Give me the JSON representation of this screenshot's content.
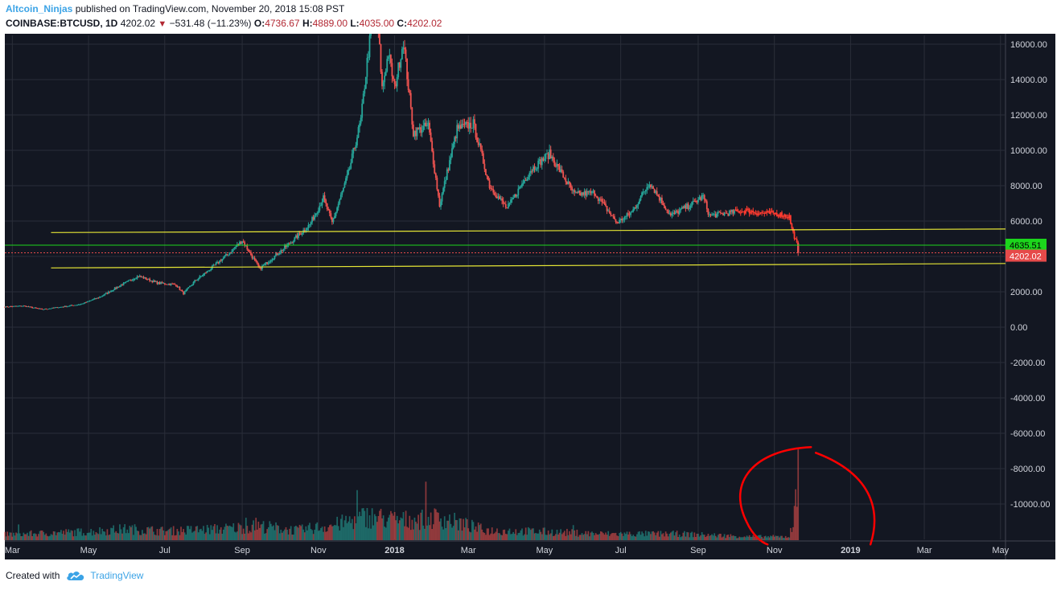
{
  "header": {
    "author": "Altcoin_Ninjas",
    "published": " published on TradingView.com, November 20, 2018 15:08 PST",
    "symbol": "COINBASE:BTCUSD, 1D",
    "last": "4202.02",
    "change": "−531.48 (−11.23%)",
    "o_label": "O:",
    "o": "4736.67",
    "h_label": "H:",
    "h": "4889.00",
    "l_label": "L:",
    "l": "4035.00",
    "c_label": "C:",
    "c": "4202.02"
  },
  "footer": {
    "created": "Created with",
    "brand": "TradingView",
    "logo_icon": "tradingview-cloud-icon"
  },
  "colors": {
    "background": "#131722",
    "grid": "#2a2e39",
    "up": "#26a69a",
    "down": "#ef5350",
    "price_line": "#ff3b30",
    "channel": "#e6e635",
    "support": "#1cd61c",
    "last_label": "#e64a4a",
    "annotation": "#ff0000",
    "axis_text": "#d1d4dc"
  },
  "chart_data": {
    "type": "candlestick",
    "symbol": "COINBASE:BTCUSD",
    "interval": "1D",
    "ylim": [
      -12000,
      16500
    ],
    "yticks": [
      16000,
      14000,
      12000,
      10000,
      8000,
      6000,
      4000,
      2000,
      0,
      -2000,
      -4000,
      -6000,
      -8000,
      -10000
    ],
    "ytick_labels": [
      "16000.00",
      "14000.00",
      "12000.00",
      "10000.00",
      "8000.00",
      "6000.00",
      "4000.00",
      "2000.00",
      "0.00",
      "-2000.00",
      "-4000.00",
      "-6000.00",
      "-8000.00",
      "-10000.00"
    ],
    "xticks": [
      "Mar",
      "May",
      "Jul",
      "Sep",
      "Nov",
      "2018",
      "Mar",
      "May",
      "Jul",
      "Sep",
      "Nov",
      "2019",
      "Mar",
      "May"
    ],
    "xtick_dates": [
      "2017-03-01",
      "2017-05-01",
      "2017-07-01",
      "2017-09-01",
      "2017-11-01",
      "2018-01-01",
      "2018-03-01",
      "2018-05-01",
      "2018-07-01",
      "2018-09-01",
      "2018-11-01",
      "2019-01-01",
      "2019-03-01",
      "2019-05-01"
    ],
    "x_range": [
      "2017-02-23",
      "2019-05-05"
    ],
    "price_path": [
      [
        "2017-02-23",
        1150
      ],
      [
        "2017-03-10",
        1200
      ],
      [
        "2017-03-25",
        1000
      ],
      [
        "2017-04-10",
        1150
      ],
      [
        "2017-04-25",
        1300
      ],
      [
        "2017-05-10",
        1700
      ],
      [
        "2017-05-25",
        2300
      ],
      [
        "2017-06-10",
        2900
      ],
      [
        "2017-06-25",
        2500
      ],
      [
        "2017-07-10",
        2400
      ],
      [
        "2017-07-16",
        1900
      ],
      [
        "2017-07-25",
        2600
      ],
      [
        "2017-08-05",
        3200
      ],
      [
        "2017-08-20",
        4100
      ],
      [
        "2017-09-01",
        4900
      ],
      [
        "2017-09-15",
        3300
      ],
      [
        "2017-09-25",
        3900
      ],
      [
        "2017-10-10",
        4800
      ],
      [
        "2017-10-25",
        5800
      ],
      [
        "2017-11-05",
        7300
      ],
      [
        "2017-11-12",
        5900
      ],
      [
        "2017-11-25",
        8700
      ],
      [
        "2017-12-05",
        11700
      ],
      [
        "2017-12-10",
        15000
      ],
      [
        "2017-12-17",
        19000
      ],
      [
        "2017-12-22",
        13500
      ],
      [
        "2017-12-27",
        15500
      ],
      [
        "2018-01-01",
        13500
      ],
      [
        "2018-01-08",
        16200
      ],
      [
        "2018-01-16",
        11000
      ],
      [
        "2018-01-28",
        11400
      ],
      [
        "2018-02-06",
        6900
      ],
      [
        "2018-02-20",
        11200
      ],
      [
        "2018-03-05",
        11500
      ],
      [
        "2018-03-18",
        8000
      ],
      [
        "2018-04-01",
        6700
      ],
      [
        "2018-04-20",
        8900
      ],
      [
        "2018-05-05",
        9800
      ],
      [
        "2018-05-25",
        7500
      ],
      [
        "2018-06-10",
        7600
      ],
      [
        "2018-06-28",
        5900
      ],
      [
        "2018-07-10",
        6500
      ],
      [
        "2018-07-24",
        8200
      ],
      [
        "2018-08-10",
        6300
      ],
      [
        "2018-08-28",
        7000
      ],
      [
        "2018-09-05",
        7400
      ],
      [
        "2018-09-10",
        6300
      ],
      [
        "2018-10-10",
        6600
      ],
      [
        "2018-10-20",
        6450
      ],
      [
        "2018-11-05",
        6400
      ],
      [
        "2018-11-13",
        6250
      ],
      [
        "2018-11-15",
        5550
      ],
      [
        "2018-11-19",
        4700
      ],
      [
        "2018-11-20",
        4202
      ]
    ],
    "last_candle": {
      "open": 4736.67,
      "high": 4889.0,
      "low": 4035.0,
      "close": 4202.02,
      "change": -531.48,
      "change_pct": -11.23
    },
    "price_labels": [
      {
        "value": 4635.51,
        "label": "4635.51",
        "color": "#1cd61c"
      },
      {
        "value": 4202.02,
        "label": "4202.02",
        "color": "#e64a4a"
      }
    ],
    "lines": [
      {
        "type": "trend",
        "color": "#e6e635",
        "from": [
          "2017-04-01",
          5350
        ],
        "to": [
          "2019-05-05",
          5550
        ]
      },
      {
        "type": "trend",
        "color": "#e6e635",
        "from": [
          "2017-04-01",
          3350
        ],
        "to": [
          "2019-05-05",
          3600
        ]
      },
      {
        "type": "horizontal",
        "color": "#1cd61c",
        "value": 4635.51
      },
      {
        "type": "horizontal-dotted",
        "color": "#e64a4a",
        "value": 4202.02
      }
    ],
    "volume_path": [
      [
        "2017-02-23",
        0.08
      ],
      [
        "2017-05-01",
        0.12
      ],
      [
        "2017-06-01",
        0.16
      ],
      [
        "2017-07-01",
        0.13
      ],
      [
        "2017-08-15",
        0.16
      ],
      [
        "2017-09-15",
        0.2
      ],
      [
        "2017-10-15",
        0.14
      ],
      [
        "2017-11-15",
        0.22
      ],
      [
        "2017-12-10",
        0.34
      ],
      [
        "2018-01-05",
        0.28
      ],
      [
        "2018-02-06",
        0.32
      ],
      [
        "2018-03-15",
        0.14
      ],
      [
        "2018-05-01",
        0.12
      ],
      [
        "2018-06-15",
        0.09
      ],
      [
        "2018-08-15",
        0.09
      ],
      [
        "2018-10-15",
        0.05
      ],
      [
        "2018-11-13",
        0.05
      ],
      [
        "2018-11-14",
        0.22
      ],
      [
        "2018-11-16",
        0.14
      ],
      [
        "2018-11-20",
        0.94
      ]
    ],
    "annotation": {
      "type": "freehand-circle",
      "color": "#ff0000",
      "around": "volume spike 2018-11-20"
    },
    "grid": true
  }
}
